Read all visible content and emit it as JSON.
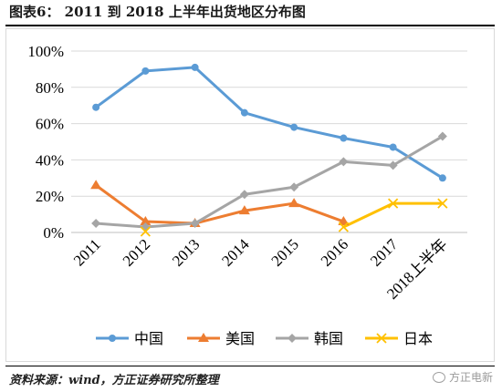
{
  "title": "图表6：  2011 到 2018 上半年出货地区分布图",
  "source": "资料来源：wind，方正证券研究所整理",
  "watermark": "方正电新",
  "chart_data": {
    "type": "line",
    "categories": [
      "2011",
      "2012",
      "2013",
      "2014",
      "2015",
      "2016",
      "2017",
      "2018上半年"
    ],
    "y_ticks": [
      "0%",
      "20%",
      "40%",
      "60%",
      "80%",
      "100%"
    ],
    "ylim": [
      0,
      100
    ],
    "grid": true,
    "legend_position": "bottom",
    "series": [
      {
        "name": "中国",
        "color": "#5b9bd5",
        "marker": "circle",
        "values": [
          69,
          89,
          91,
          66,
          58,
          52,
          47,
          30
        ]
      },
      {
        "name": "美国",
        "color": "#ed7d31",
        "marker": "triangle",
        "values": [
          26,
          6,
          5,
          12,
          16,
          6,
          null,
          null
        ]
      },
      {
        "name": "韩国",
        "color": "#a5a5a5",
        "marker": "diamond",
        "values": [
          5,
          3,
          5,
          21,
          25,
          39,
          37,
          53
        ]
      },
      {
        "name": "日本",
        "color": "#ffc000",
        "marker": "x",
        "values": [
          null,
          0.5,
          null,
          null,
          null,
          3,
          16,
          16
        ]
      }
    ]
  }
}
